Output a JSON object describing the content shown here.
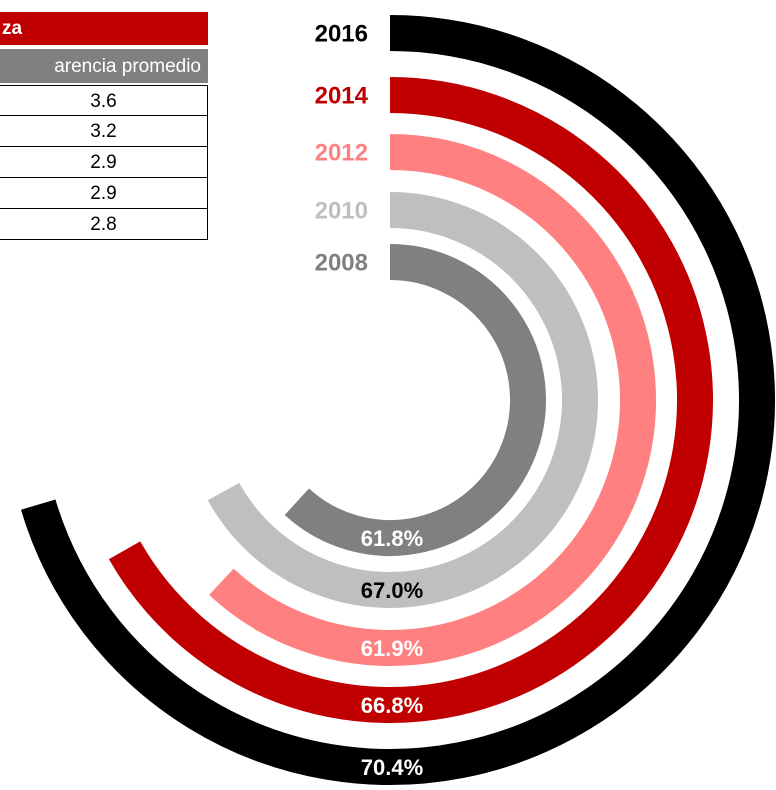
{
  "table": {
    "header": "za",
    "column": "arencia promedio",
    "rows": [
      "3.6",
      "3.2",
      "2.9",
      "2.9",
      "2.8"
    ]
  },
  "chart_data": {
    "type": "radial_bar",
    "categories": [
      "2016",
      "2014",
      "2012",
      "2010",
      "2008"
    ],
    "values": [
      70.4,
      66.8,
      61.9,
      67.0,
      61.8
    ],
    "value_labels": [
      "70.4%",
      "66.8%",
      "61.9%",
      "67.0%",
      "61.8%"
    ],
    "colors": [
      "#000000",
      "#c00000",
      "#ff8080",
      "#bfbfbf",
      "#808080"
    ],
    "label_colors": [
      "#ffffff",
      "#ffffff",
      "#ffffff",
      "#000000",
      "#ffffff"
    ]
  }
}
